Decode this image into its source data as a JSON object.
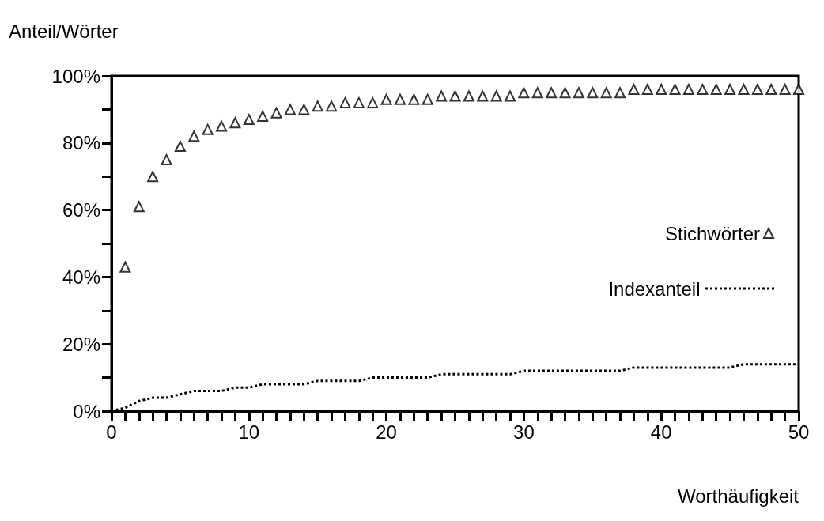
{
  "chart_data": {
    "type": "scatter",
    "xlabel": "Worthäufigkeit",
    "ylabel": "Anteil/Wörter",
    "xlim": [
      0,
      50
    ],
    "ylim": [
      0,
      100
    ],
    "xticks": [
      0,
      {
        "value": 1,
        "label": null
      },
      {
        "value": 2,
        "label": null
      },
      {
        "value": 3,
        "label": null
      },
      {
        "value": 4,
        "label": null
      },
      {
        "value": 5,
        "label": null
      },
      {
        "value": 6,
        "label": null
      },
      {
        "value": 7,
        "label": null
      },
      {
        "value": 8,
        "label": null
      },
      {
        "value": 9,
        "label": null
      },
      10,
      {
        "value": 11,
        "label": null
      },
      {
        "value": 12,
        "label": null
      },
      {
        "value": 13,
        "label": null
      },
      {
        "value": 14,
        "label": null
      },
      {
        "value": 15,
        "label": null
      },
      {
        "value": 16,
        "label": null
      },
      {
        "value": 17,
        "label": null
      },
      {
        "value": 18,
        "label": null
      },
      {
        "value": 19,
        "label": null
      },
      20,
      {
        "value": 21,
        "label": null
      },
      {
        "value": 22,
        "label": null
      },
      {
        "value": 23,
        "label": null
      },
      {
        "value": 24,
        "label": null
      },
      {
        "value": 25,
        "label": null
      },
      {
        "value": 26,
        "label": null
      },
      {
        "value": 27,
        "label": null
      },
      {
        "value": 28,
        "label": null
      },
      {
        "value": 29,
        "label": null
      },
      30,
      {
        "value": 31,
        "label": null
      },
      {
        "value": 32,
        "label": null
      },
      {
        "value": 33,
        "label": null
      },
      {
        "value": 34,
        "label": null
      },
      {
        "value": 35,
        "label": null
      },
      {
        "value": 36,
        "label": null
      },
      {
        "value": 37,
        "label": null
      },
      {
        "value": 38,
        "label": null
      },
      {
        "value": 39,
        "label": null
      },
      40,
      {
        "value": 41,
        "label": null
      },
      {
        "value": 42,
        "label": null
      },
      {
        "value": 43,
        "label": null
      },
      {
        "value": 44,
        "label": null
      },
      {
        "value": 45,
        "label": null
      },
      {
        "value": 46,
        "label": null
      },
      {
        "value": 47,
        "label": null
      },
      {
        "value": 48,
        "label": null
      },
      {
        "value": 49,
        "label": null
      },
      50
    ],
    "yticks": [
      {
        "value": 0,
        "label": "0%"
      },
      {
        "value": 10,
        "label": null
      },
      {
        "value": 20,
        "label": "20%"
      },
      {
        "value": 30,
        "label": null
      },
      {
        "value": 40,
        "label": "40%"
      },
      {
        "value": 50,
        "label": null
      },
      {
        "value": 60,
        "label": "60%"
      },
      {
        "value": 70,
        "label": null
      },
      {
        "value": 80,
        "label": "80%"
      },
      {
        "value": 90,
        "label": null
      },
      {
        "value": 100,
        "label": "100%"
      }
    ],
    "grid": false,
    "legend": "right",
    "series": [
      {
        "name": "Stichwörter",
        "marker": "triangle",
        "color": "#000000",
        "x": [
          1,
          2,
          3,
          4,
          5,
          6,
          7,
          8,
          9,
          10,
          11,
          12,
          13,
          14,
          15,
          16,
          17,
          18,
          19,
          20,
          21,
          22,
          23,
          24,
          25,
          26,
          27,
          28,
          29,
          30,
          31,
          32,
          33,
          34,
          35,
          36,
          37,
          38,
          39,
          40,
          41,
          42,
          43,
          44,
          45,
          46,
          47,
          48,
          49,
          50
        ],
        "values": [
          43,
          61,
          70,
          75,
          79,
          82,
          84,
          85,
          86,
          87,
          88,
          89,
          90,
          90,
          91,
          91,
          92,
          92,
          92,
          93,
          93,
          93,
          93,
          94,
          94,
          94,
          94,
          94,
          94,
          95,
          95,
          95,
          95,
          95,
          95,
          95,
          95,
          96,
          96,
          96,
          96,
          96,
          96,
          96,
          96,
          96,
          96,
          96,
          96,
          96
        ]
      },
      {
        "name": "Indexanteil",
        "type": "line",
        "marker": "none",
        "line_style": "dotted",
        "color": "#000000",
        "x": [
          0,
          1,
          2,
          3,
          4,
          5,
          6,
          7,
          8,
          9,
          10,
          11,
          12,
          13,
          14,
          15,
          16,
          17,
          18,
          19,
          20,
          21,
          22,
          23,
          24,
          25,
          26,
          27,
          28,
          29,
          30,
          31,
          32,
          33,
          34,
          35,
          36,
          37,
          38,
          39,
          40,
          41,
          42,
          43,
          44,
          45,
          46,
          47,
          48,
          49,
          50
        ],
        "values": [
          0,
          1,
          3,
          4,
          4,
          5,
          6,
          6,
          6,
          7,
          7,
          8,
          8,
          8,
          8,
          9,
          9,
          9,
          9,
          10,
          10,
          10,
          10,
          10,
          11,
          11,
          11,
          11,
          11,
          11,
          12,
          12,
          12,
          12,
          12,
          12,
          12,
          12,
          13,
          13,
          13,
          13,
          13,
          13,
          13,
          13,
          14,
          14,
          14,
          14,
          14
        ]
      }
    ]
  }
}
